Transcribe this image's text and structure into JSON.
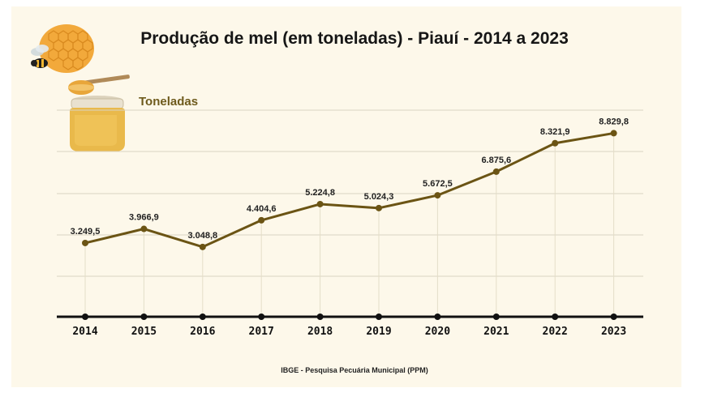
{
  "chart_data": {
    "type": "line",
    "title": "Produção de mel (em toneladas) - Piauí - 2014 a 2023",
    "ylabel": "Toneladas",
    "xlabel": "",
    "categories": [
      "2014",
      "2015",
      "2016",
      "2017",
      "2018",
      "2019",
      "2020",
      "2021",
      "2022",
      "2023"
    ],
    "series": [
      {
        "values": [
          3249.5,
          3966.9,
          3048.8,
          4404.6,
          5224.8,
          5024.3,
          5672.5,
          6875.6,
          8321.9,
          8829.8
        ],
        "data_labels": [
          "3.249,5",
          "3.966,9",
          "3.048,8",
          "4.404,6",
          "5.224,8",
          "5.024,3",
          "5.672,5",
          "6.875,6",
          "8.321,9",
          "8.829,8"
        ]
      }
    ],
    "ylim": [
      -500,
      10000
    ],
    "grid": true,
    "legend": "none",
    "line_color": "#6b5414",
    "grid_color": "#d9d3c2",
    "axis_color": "#111111"
  },
  "source": "IBGE - Pesquisa Pecuária Municipal (PPM)"
}
